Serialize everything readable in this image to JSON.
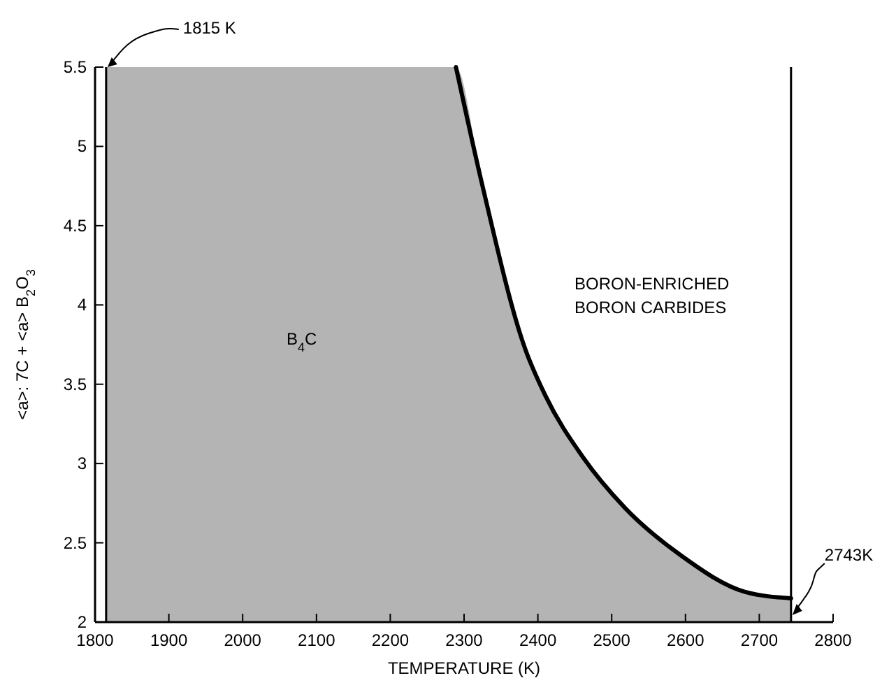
{
  "chart_data": {
    "type": "area",
    "xlabel": "TEMPERATURE (K)",
    "ylabel": "<a>: 7C + <a> B$_{2}$O$_{3}$",
    "xlim": [
      1800,
      2800
    ],
    "xticks": [
      1800,
      1900,
      2000,
      2100,
      2200,
      2300,
      2400,
      2500,
      2600,
      2700,
      2800
    ],
    "ylim": [
      2,
      5.5
    ],
    "yticks": [
      2,
      2.5,
      3,
      3.5,
      4,
      4.5,
      5,
      5.5
    ],
    "series": [
      {
        "color": "#b4b4b4",
        "x": [
          1815,
          2289,
          2325,
          2383,
          2410,
          2461,
          2518,
          2594,
          2681,
          2743
        ],
        "values": [
          5.5,
          5.5,
          4.75,
          3.72,
          3.43,
          3.04,
          2.72,
          2.42,
          2.19,
          2.15
        ]
      }
    ],
    "ref_lines": [
      {
        "axis": "x",
        "value": 1815,
        "label": "1815 K"
      },
      {
        "axis": "x",
        "value": 2743,
        "label": "2743K"
      }
    ],
    "annotations": [
      "B$_{4}$C",
      "BORON-ENRICHED\nBORON CARBIDES"
    ],
    "grid": false
  }
}
